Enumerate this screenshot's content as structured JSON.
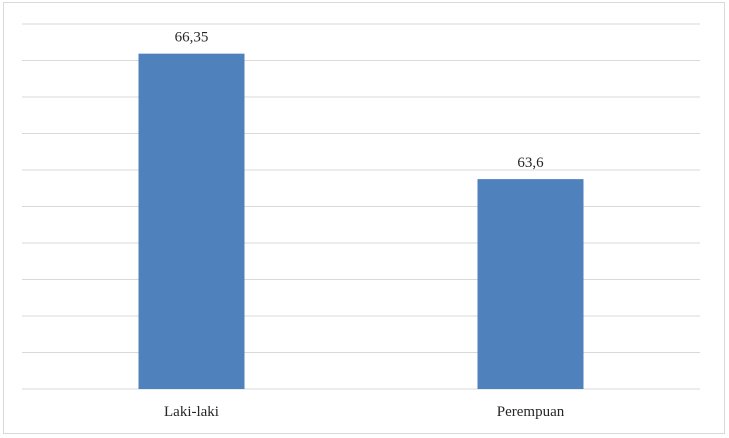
{
  "chart_data": {
    "type": "bar",
    "title": "",
    "xlabel": "",
    "ylabel": "",
    "categories": [
      "Laki-laki",
      "Perempuan"
    ],
    "values": [
      66.35,
      63.6
    ],
    "data_labels": [
      "66,35",
      "63,6"
    ],
    "ylim": [
      59,
      67
    ],
    "grid": true,
    "legend": "none",
    "colors": {
      "bar": "#4f81bd",
      "grid": "#d9d9d9",
      "text": "#262626"
    }
  }
}
